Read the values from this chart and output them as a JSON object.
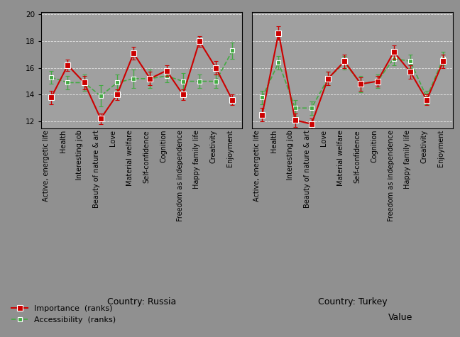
{
  "categories": [
    "Active, energetic life",
    "Health",
    "Interesting job",
    "Beauty of nature & art",
    "Love",
    "Material welfare",
    "Self-confidence",
    "Cognition",
    "Freedom as independence",
    "Happy family life",
    "Creativity",
    "Enjoyment"
  ],
  "russia_importance": [
    13.8,
    16.2,
    14.9,
    12.2,
    14.0,
    17.1,
    15.2,
    15.8,
    14.0,
    18.0,
    16.0,
    13.6
  ],
  "russia_importance_err": [
    0.5,
    0.4,
    0.5,
    0.4,
    0.4,
    0.5,
    0.5,
    0.4,
    0.4,
    0.4,
    0.5,
    0.4
  ],
  "russia_accessibility": [
    15.3,
    14.9,
    14.9,
    13.9,
    14.9,
    15.2,
    15.2,
    15.4,
    15.0,
    15.0,
    15.0,
    17.3
  ],
  "russia_accessibility_err": [
    0.5,
    0.5,
    0.6,
    0.8,
    0.6,
    0.7,
    0.7,
    0.5,
    0.6,
    0.5,
    0.5,
    0.6
  ],
  "turkey_importance": [
    12.5,
    18.6,
    12.1,
    11.8,
    15.2,
    16.5,
    14.8,
    15.0,
    17.2,
    15.7,
    13.6,
    16.5
  ],
  "turkey_importance_err": [
    0.5,
    0.5,
    0.5,
    0.4,
    0.5,
    0.5,
    0.5,
    0.4,
    0.5,
    0.5,
    0.4,
    0.5
  ],
  "turkey_accessibility": [
    13.8,
    16.4,
    13.0,
    13.0,
    15.2,
    16.4,
    14.8,
    15.0,
    16.7,
    16.5,
    13.8,
    16.7
  ],
  "turkey_accessibility_err": [
    0.5,
    0.5,
    0.6,
    0.5,
    0.5,
    0.5,
    0.6,
    0.5,
    0.5,
    0.5,
    0.5,
    0.5
  ],
  "importance_color": "#cc0000",
  "accessibility_color": "#44aa44",
  "bg_color": "#909090",
  "plot_bg_color": "#a0a0a0",
  "ylim": [
    11.5,
    20.2
  ],
  "yticks": [
    12,
    14,
    16,
    18,
    20
  ],
  "xlabel_russia": "Country: Russia",
  "xlabel_turkey": "Country: Turkey",
  "xlabel_shared": "Value",
  "legend_importance": "Importance  (ranks)",
  "legend_accessibility": "Accessibility  (ranks)",
  "tick_fontsize": 7.5,
  "label_fontsize": 9,
  "legend_fontsize": 8
}
